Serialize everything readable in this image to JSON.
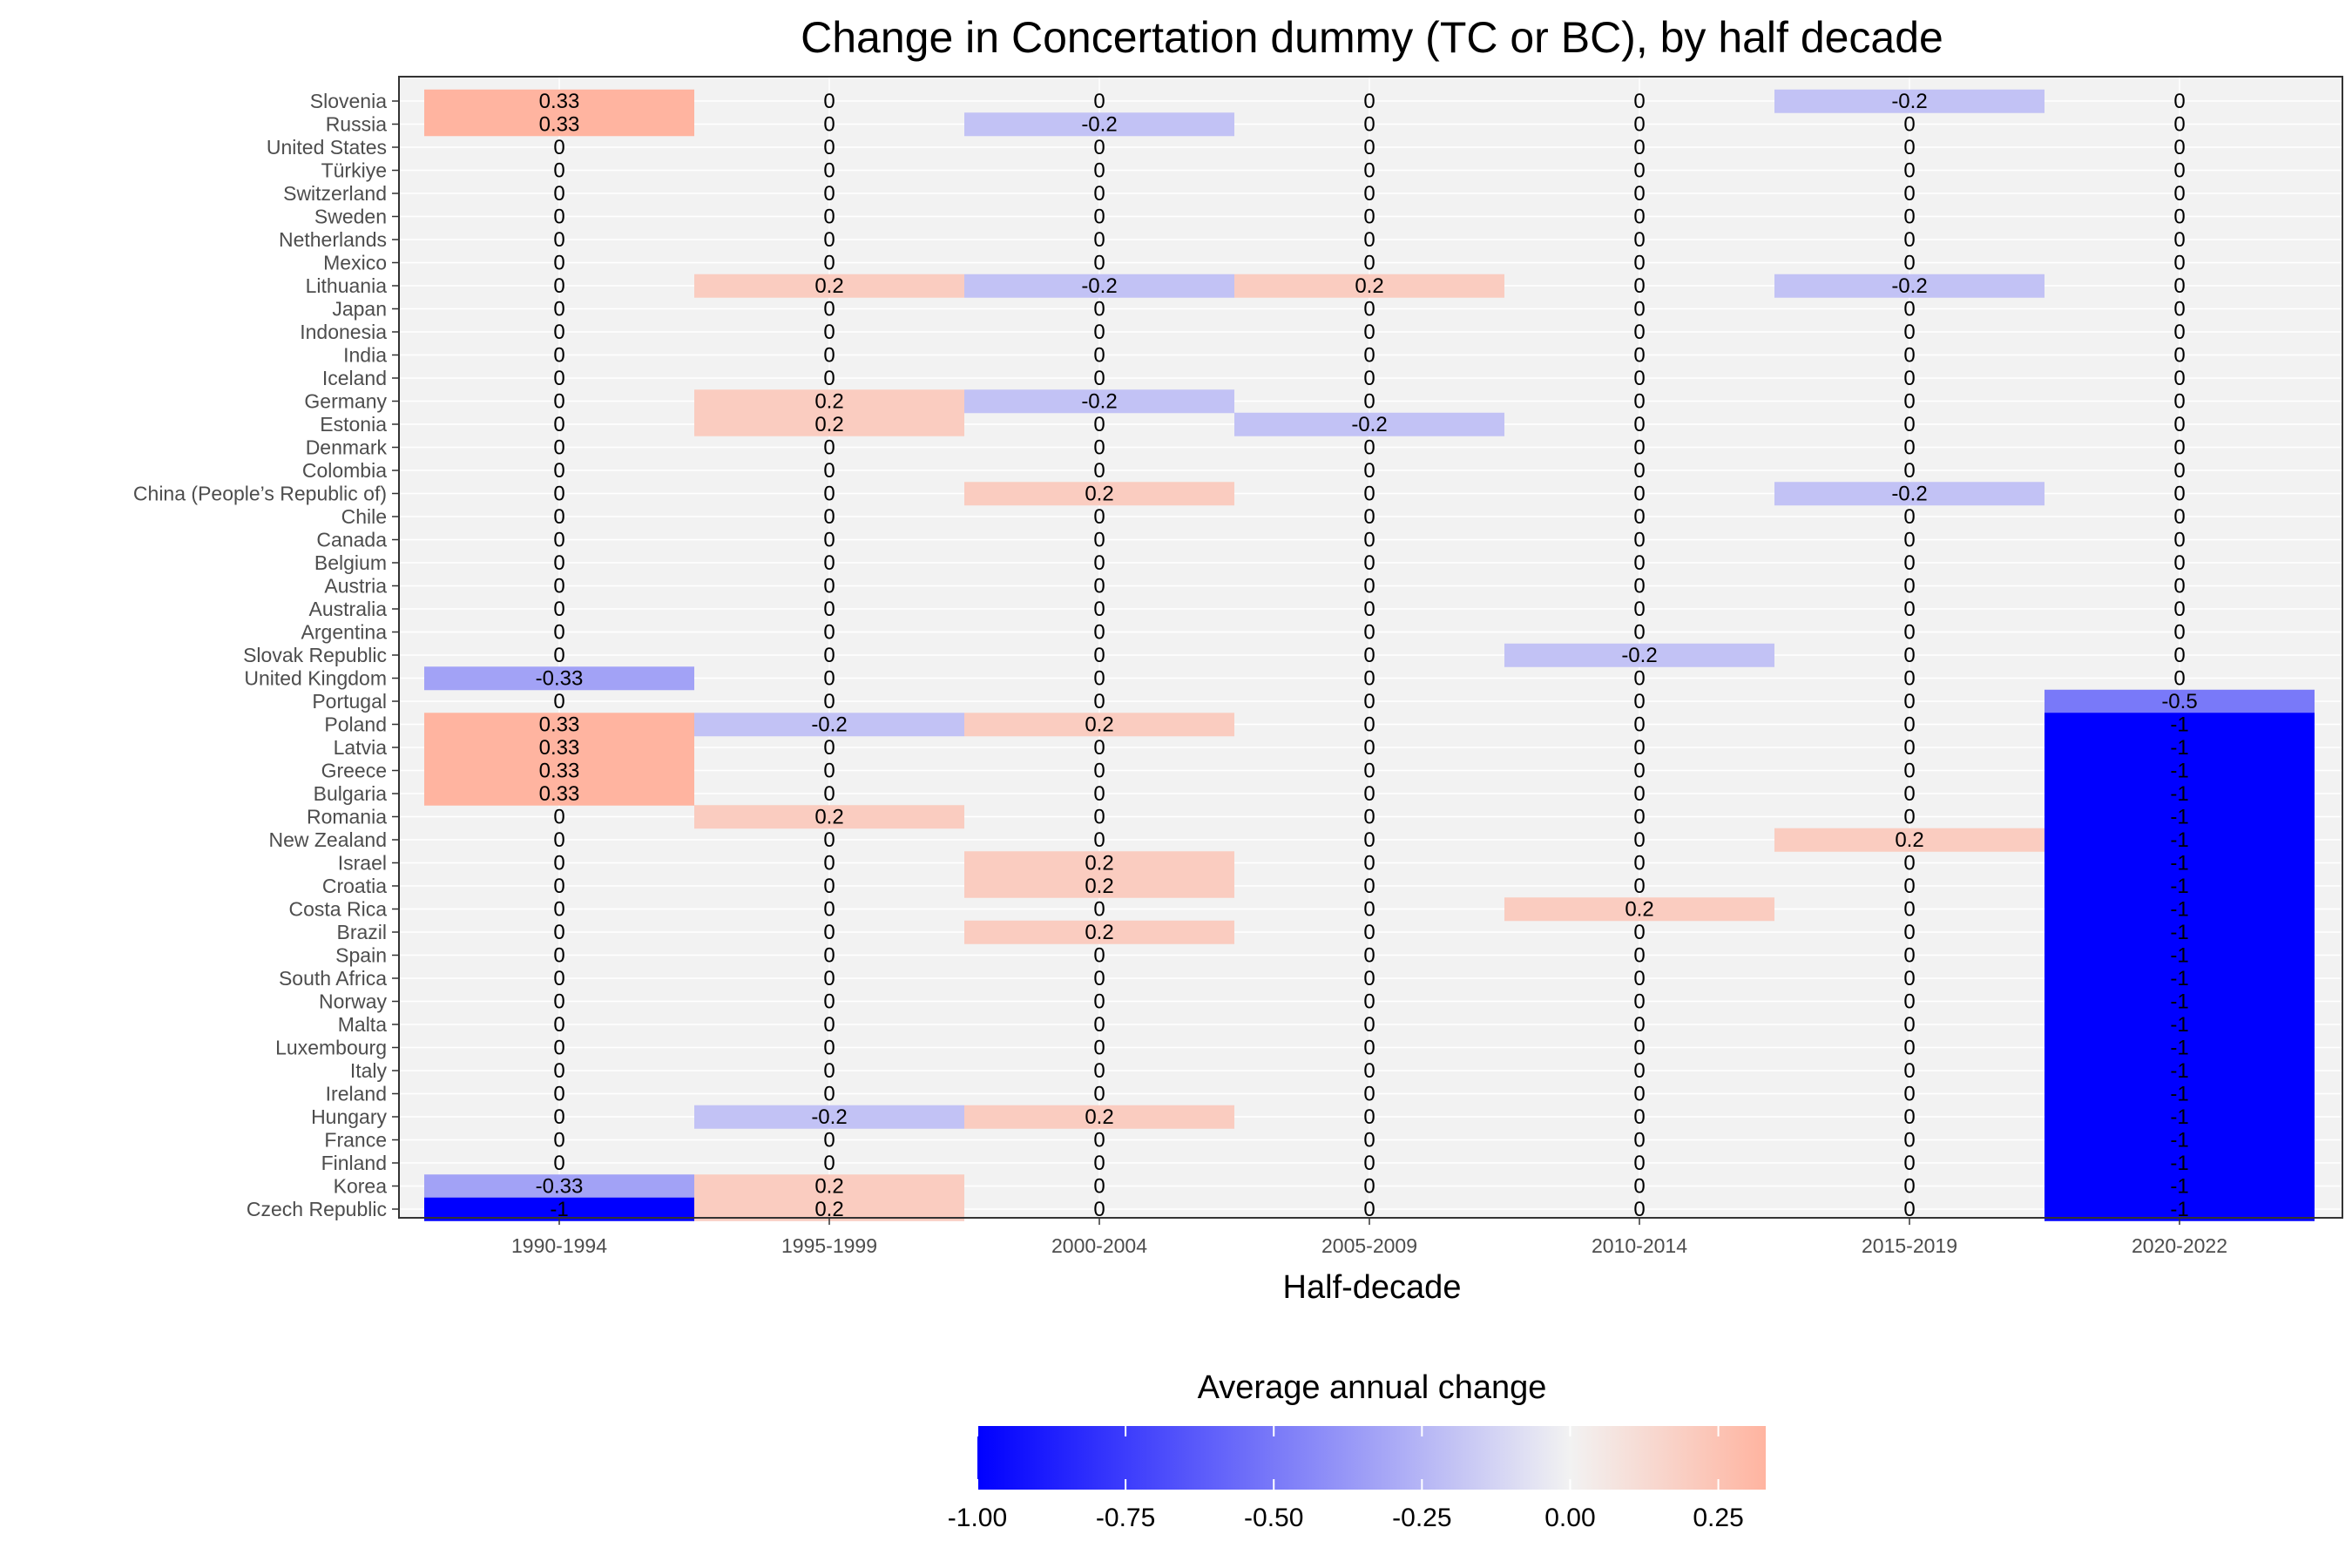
{
  "chart_data": {
    "type": "heatmap",
    "title": "Change in Concertation dummy (TC or BC), by half decade",
    "xlabel": "Half-decade",
    "ylabel": "",
    "x_categories": [
      "1990-1994",
      "1995-1999",
      "2000-2004",
      "2005-2009",
      "2010-2014",
      "2015-2019",
      "2020-2022"
    ],
    "y_categories": [
      "Slovenia",
      "Russia",
      "United States",
      "Türkiye",
      "Switzerland",
      "Sweden",
      "Netherlands",
      "Mexico",
      "Lithuania",
      "Japan",
      "Indonesia",
      "India",
      "Iceland",
      "Germany",
      "Estonia",
      "Denmark",
      "Colombia",
      "China (People’s Republic of)",
      "Chile",
      "Canada",
      "Belgium",
      "Austria",
      "Australia",
      "Argentina",
      "Slovak Republic",
      "United Kingdom",
      "Portugal",
      "Poland",
      "Latvia",
      "Greece",
      "Bulgaria",
      "Romania",
      "New Zealand",
      "Israel",
      "Croatia",
      "Costa Rica",
      "Brazil",
      "Spain",
      "South Africa",
      "Norway",
      "Malta",
      "Luxembourg",
      "Italy",
      "Ireland",
      "Hungary",
      "France",
      "Finland",
      "Korea",
      "Czech Republic"
    ],
    "values": [
      [
        0.33,
        0,
        0,
        0,
        0,
        -0.2,
        0
      ],
      [
        0.33,
        0,
        -0.2,
        0,
        0,
        0,
        0
      ],
      [
        0,
        0,
        0,
        0,
        0,
        0,
        0
      ],
      [
        0,
        0,
        0,
        0,
        0,
        0,
        0
      ],
      [
        0,
        0,
        0,
        0,
        0,
        0,
        0
      ],
      [
        0,
        0,
        0,
        0,
        0,
        0,
        0
      ],
      [
        0,
        0,
        0,
        0,
        0,
        0,
        0
      ],
      [
        0,
        0,
        0,
        0,
        0,
        0,
        0
      ],
      [
        0,
        0.2,
        -0.2,
        0.2,
        0,
        -0.2,
        0
      ],
      [
        0,
        0,
        0,
        0,
        0,
        0,
        0
      ],
      [
        0,
        0,
        0,
        0,
        0,
        0,
        0
      ],
      [
        0,
        0,
        0,
        0,
        0,
        0,
        0
      ],
      [
        0,
        0,
        0,
        0,
        0,
        0,
        0
      ],
      [
        0,
        0.2,
        -0.2,
        0,
        0,
        0,
        0
      ],
      [
        0,
        0.2,
        0,
        -0.2,
        0,
        0,
        0
      ],
      [
        0,
        0,
        0,
        0,
        0,
        0,
        0
      ],
      [
        0,
        0,
        0,
        0,
        0,
        0,
        0
      ],
      [
        0,
        0,
        0.2,
        0,
        0,
        -0.2,
        0
      ],
      [
        0,
        0,
        0,
        0,
        0,
        0,
        0
      ],
      [
        0,
        0,
        0,
        0,
        0,
        0,
        0
      ],
      [
        0,
        0,
        0,
        0,
        0,
        0,
        0
      ],
      [
        0,
        0,
        0,
        0,
        0,
        0,
        0
      ],
      [
        0,
        0,
        0,
        0,
        0,
        0,
        0
      ],
      [
        0,
        0,
        0,
        0,
        0,
        0,
        0
      ],
      [
        0,
        0,
        0,
        0,
        -0.2,
        0,
        0
      ],
      [
        -0.33,
        0,
        0,
        0,
        0,
        0,
        0
      ],
      [
        0,
        0,
        0,
        0,
        0,
        0,
        -0.5
      ],
      [
        0.33,
        -0.2,
        0.2,
        0,
        0,
        0,
        -1
      ],
      [
        0.33,
        0,
        0,
        0,
        0,
        0,
        -1
      ],
      [
        0.33,
        0,
        0,
        0,
        0,
        0,
        -1
      ],
      [
        0.33,
        0,
        0,
        0,
        0,
        0,
        -1
      ],
      [
        0,
        0.2,
        0,
        0,
        0,
        0,
        -1
      ],
      [
        0,
        0,
        0,
        0,
        0,
        0.2,
        -1
      ],
      [
        0,
        0,
        0.2,
        0,
        0,
        0,
        -1
      ],
      [
        0,
        0,
        0.2,
        0,
        0,
        0,
        -1
      ],
      [
        0,
        0,
        0,
        0,
        0.2,
        0,
        -1
      ],
      [
        0,
        0,
        0.2,
        0,
        0,
        0,
        -1
      ],
      [
        0,
        0,
        0,
        0,
        0,
        0,
        -1
      ],
      [
        0,
        0,
        0,
        0,
        0,
        0,
        -1
      ],
      [
        0,
        0,
        0,
        0,
        0,
        0,
        -1
      ],
      [
        0,
        0,
        0,
        0,
        0,
        0,
        -1
      ],
      [
        0,
        0,
        0,
        0,
        0,
        0,
        -1
      ],
      [
        0,
        0,
        0,
        0,
        0,
        0,
        -1
      ],
      [
        0,
        0,
        0,
        0,
        0,
        0,
        -1
      ],
      [
        0,
        -0.2,
        0.2,
        0,
        0,
        0,
        -1
      ],
      [
        0,
        0,
        0,
        0,
        0,
        0,
        -1
      ],
      [
        0,
        0,
        0,
        0,
        0,
        0,
        -1
      ],
      [
        -0.33,
        0.2,
        0,
        0,
        0,
        0,
        -1
      ],
      [
        -1,
        0.2,
        0,
        0,
        0,
        0,
        -1
      ]
    ],
    "legend": {
      "title": "Average annual change",
      "position": "bottom",
      "ticks": [
        "-1.00",
        "-0.75",
        "-0.50",
        "-0.25",
        "0.00",
        "0.25"
      ],
      "tick_values": [
        -1,
        -0.75,
        -0.5,
        -0.25,
        0,
        0.25
      ],
      "range": [
        -1,
        0.33
      ]
    },
    "colors": {
      "low": "#0000ff",
      "mid": "#f2f2f2",
      "high": "#ffb4a0",
      "zero_fill": "#f2f2f2",
      "panel_background": "#f2f2f2",
      "border": "#333333"
    }
  }
}
